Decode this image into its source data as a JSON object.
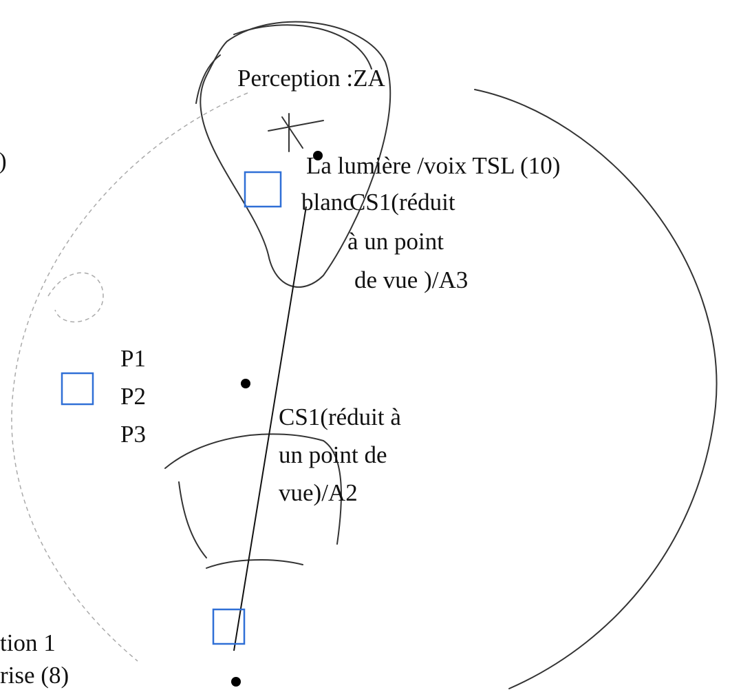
{
  "labels": {
    "perception": "Perception :ZA",
    "lumiere": "La lumière /voix TSL (10)",
    "blanc": "blanc",
    "cs1_a3_line1": "CS1(réduit",
    "cs1_a3_line2": "à un point",
    "cs1_a3_line3": "de vue )/A3",
    "left_paren": ")",
    "p1": "P1",
    "p2": "P2",
    "p3": "P3",
    "cs1_a2_line1": "CS1(réduit à",
    "cs1_a2_line2": "un point de",
    "cs1_a2_line3": "vue)/A2",
    "bottom_left_line1": "tion 1",
    "bottom_left_line2": "rise (8)"
  }
}
